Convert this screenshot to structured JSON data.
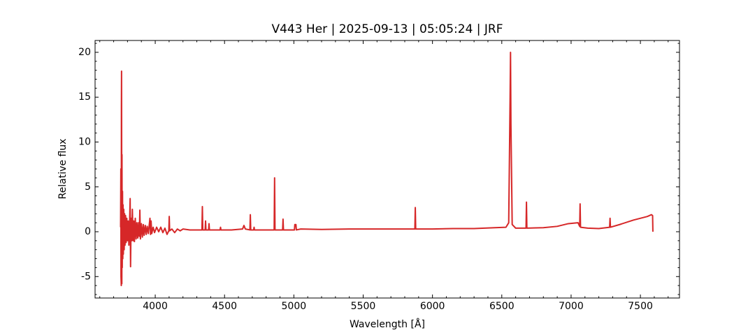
{
  "chart_data": {
    "type": "line",
    "title": "V443 Her | 2025-09-13 | 05:05:24 | JRF",
    "x_label": "Wavelength [Å]",
    "y_label": "Relative flux",
    "xlim": [
      3566,
      7782
    ],
    "ylim": [
      -7.39,
      21.32
    ],
    "xticks": [
      4000,
      4500,
      5000,
      5500,
      6000,
      6500,
      7000,
      7500
    ],
    "yticks": [
      -5,
      0,
      5,
      10,
      15,
      20
    ],
    "xminorticks": [
      3600,
      3700,
      3800,
      3900,
      4100,
      4200,
      4300,
      4400,
      4600,
      4700,
      4800,
      4900,
      5100,
      5200,
      5300,
      5400,
      5600,
      5700,
      5800,
      5900,
      6100,
      6200,
      6300,
      6400,
      6600,
      6700,
      6800,
      6900,
      7100,
      7200,
      7300,
      7400,
      7600,
      7700
    ],
    "yminorticks": [
      -7,
      -6,
      -4,
      -3,
      -2,
      -1,
      1,
      2,
      3,
      4,
      6,
      7,
      8,
      9,
      11,
      12,
      13,
      14,
      16,
      17,
      18,
      19,
      21
    ],
    "series": [
      {
        "name": "V443 Her",
        "color": "#d62728",
        "x": [
          3750,
          3752,
          3753,
          3755,
          3756,
          3757,
          3758,
          3759,
          3760,
          3762,
          3764,
          3766,
          3768,
          3770,
          3773,
          3776,
          3779,
          3782,
          3786,
          3790,
          3795,
          3800,
          3805,
          3810,
          3815,
          3819,
          3822,
          3826,
          3830,
          3835,
          3840,
          3845,
          3850,
          3856,
          3862,
          3868,
          3874,
          3880,
          3885,
          3889,
          3893,
          3900,
          3907,
          3914,
          3920,
          3928,
          3935,
          3942,
          3950,
          3962,
          3966,
          3970,
          3975,
          3985,
          3995,
          4010,
          4025,
          4040,
          4055,
          4070,
          4085,
          4098,
          4101,
          4104,
          4120,
          4140,
          4160,
          4180,
          4200,
          4250,
          4300,
          4337,
          4340,
          4343,
          4360,
          4363,
          4366,
          4385,
          4388,
          4391,
          4468,
          4471,
          4474,
          4550,
          4630,
          4640,
          4650,
          4683,
          4686,
          4689,
          4710,
          4713,
          4716,
          4800,
          4858,
          4861,
          4864,
          4919,
          4922,
          4925,
          5004,
          5007,
          5015,
          5018,
          5050,
          5200,
          5400,
          5600,
          5800,
          5873,
          5876,
          5879,
          6000,
          6150,
          6300,
          6450,
          6530,
          6550,
          6560,
          6563,
          6566,
          6575,
          6600,
          6675,
          6678,
          6681,
          6800,
          6900,
          6980,
          7050,
          7062,
          7065,
          7068,
          7120,
          7200,
          7278,
          7281,
          7284,
          7350,
          7450,
          7550,
          7580,
          7588,
          7590
        ],
        "values": [
          0.5,
          7,
          -5,
          -6,
          14,
          17.9,
          8,
          -5.8,
          8.6,
          -4,
          4.5,
          -3,
          3,
          -2.5,
          2.5,
          -2,
          2,
          -1.5,
          1.8,
          -1.2,
          1.5,
          -1,
          1.2,
          -1.5,
          1,
          3.7,
          -3.9,
          1.5,
          -1,
          2.5,
          -1,
          1.2,
          -1.1,
          1.5,
          -0.8,
          1.0,
          -0.7,
          1.0,
          -0.5,
          2.4,
          -0.8,
          0.9,
          -0.6,
          0.8,
          -0.4,
          0.7,
          -0.3,
          0.6,
          -0.2,
          1.5,
          -0.3,
          1.2,
          -0.2,
          0.5,
          -0.1,
          0.5,
          0.0,
          0.5,
          -0.1,
          0.4,
          -0.3,
          0.1,
          1.7,
          0.1,
          0.3,
          -0.1,
          0.3,
          0.1,
          0.3,
          0.2,
          0.2,
          0.2,
          2.8,
          0.2,
          0.2,
          1.2,
          0.2,
          0.2,
          0.9,
          0.2,
          0.2,
          0.5,
          0.2,
          0.2,
          0.3,
          0.7,
          0.3,
          0.2,
          1.9,
          0.2,
          0.2,
          0.5,
          0.2,
          0.2,
          0.2,
          6.0,
          0.2,
          0.2,
          1.4,
          0.2,
          0.2,
          0.8,
          0.8,
          0.2,
          0.3,
          0.25,
          0.3,
          0.3,
          0.3,
          0.3,
          2.7,
          0.3,
          0.3,
          0.35,
          0.35,
          0.45,
          0.5,
          1.0,
          15,
          20.0,
          12,
          0.8,
          0.4,
          0.4,
          3.3,
          0.4,
          0.45,
          0.6,
          0.9,
          1.0,
          0.6,
          3.1,
          0.5,
          0.4,
          0.35,
          0.5,
          1.5,
          0.5,
          0.8,
          1.3,
          1.7,
          1.9,
          1.8,
          0.0
        ]
      }
    ]
  }
}
